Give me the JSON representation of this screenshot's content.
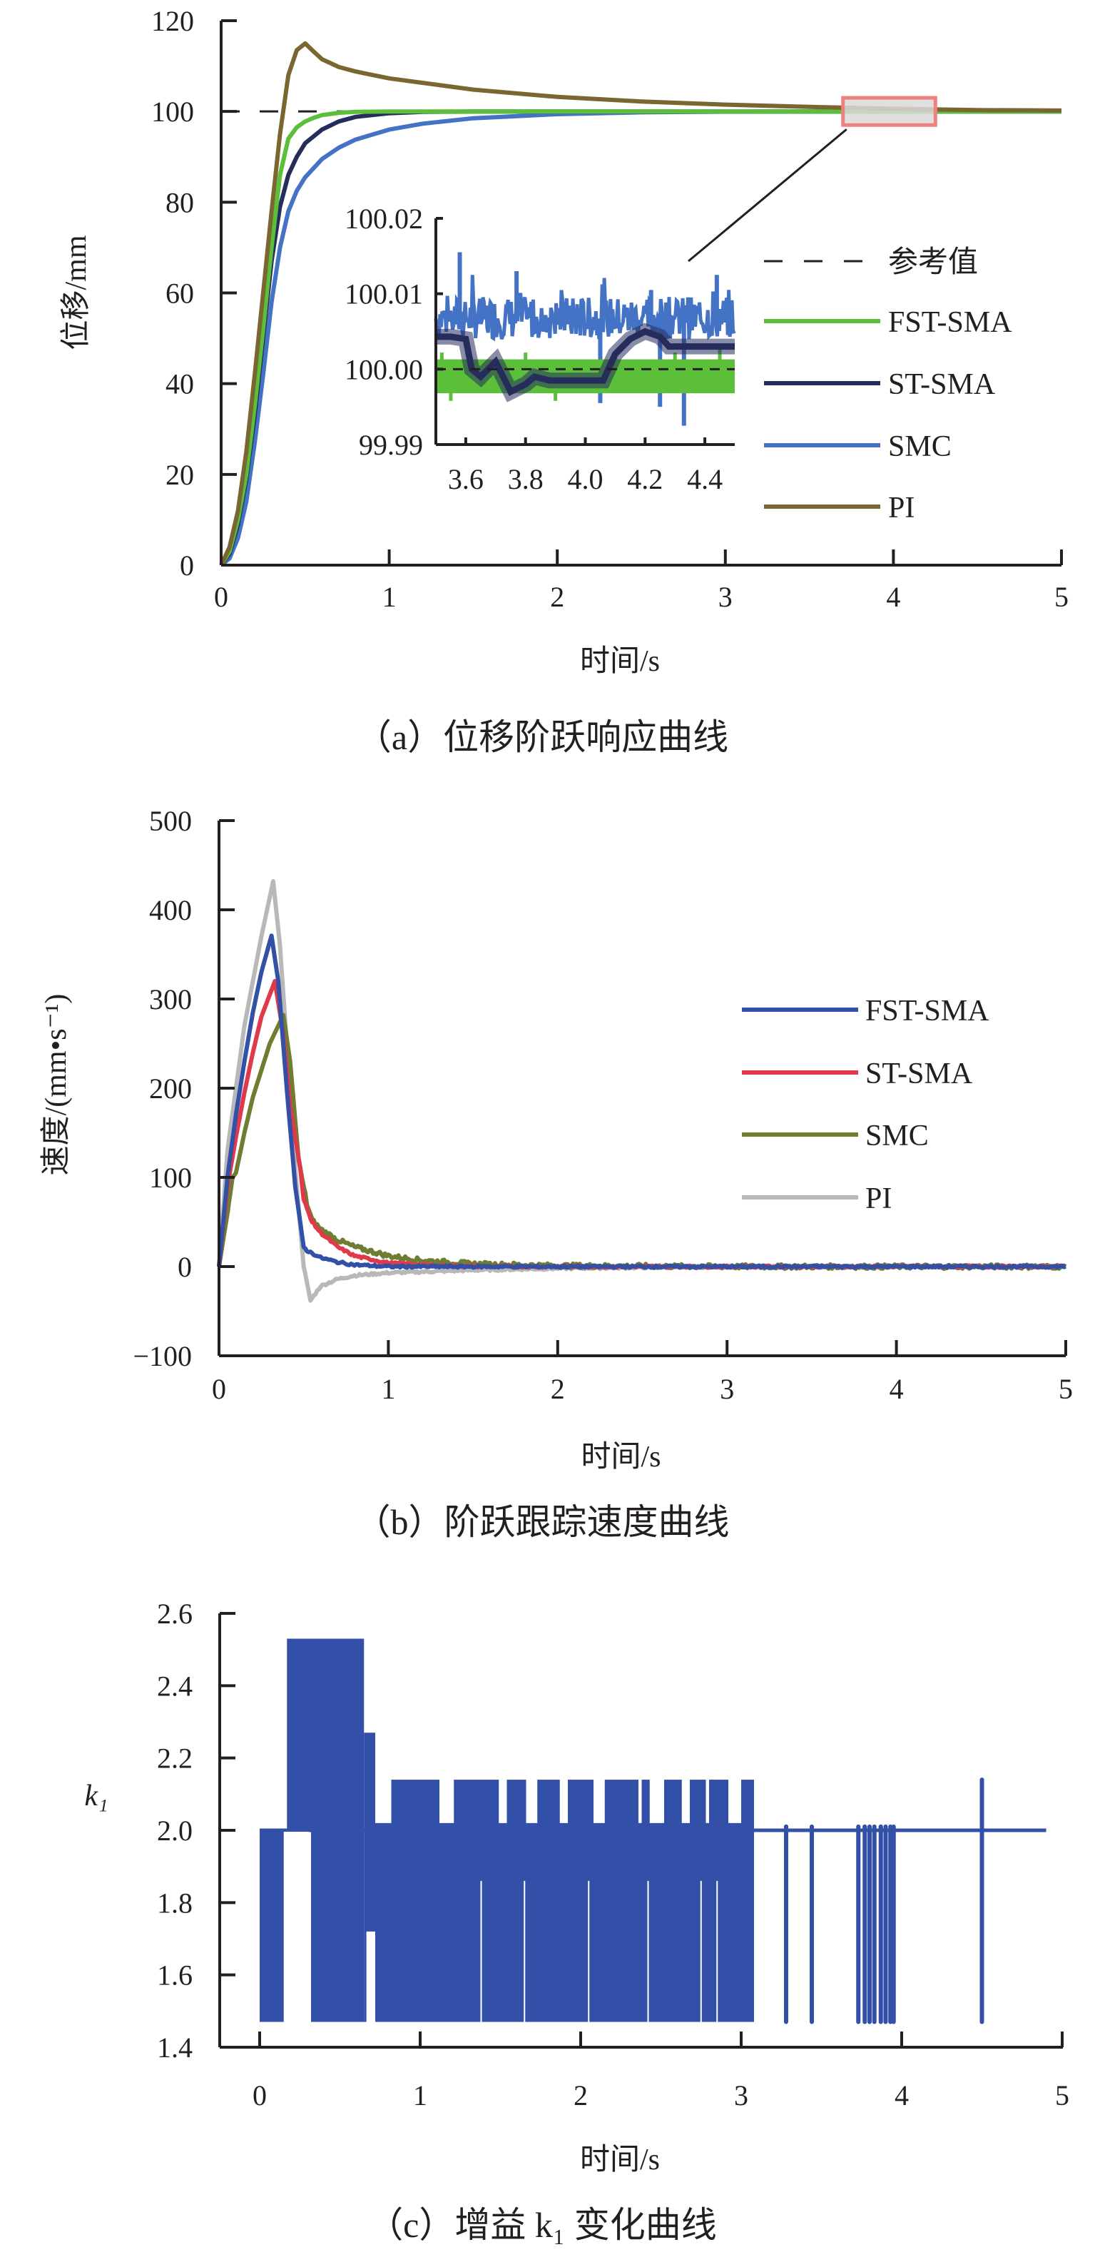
{
  "figure": {
    "description": "Three stacked line charts comparing controllers"
  },
  "chart_data": [
    {
      "id": "a",
      "type": "line",
      "title": "",
      "caption": "（a）位移阶跃响应曲线",
      "xlabel": "时间/s",
      "ylabel": "位移/mm",
      "xlim": [
        0,
        5
      ],
      "ylim": [
        0,
        120
      ],
      "xticks": [
        0,
        1,
        2,
        3,
        4,
        5
      ],
      "xtick_labels": [
        "0",
        "1",
        "2",
        "3",
        "4",
        "5"
      ],
      "yticks": [
        0,
        20,
        40,
        60,
        80,
        100,
        120
      ],
      "ytick_labels": [
        "0",
        "20",
        "40",
        "60",
        "80",
        "100",
        "120"
      ],
      "grid": false,
      "legend_position": "right",
      "reference": {
        "name": "参考值",
        "value": 100,
        "style": "dashed",
        "color": "#231f20"
      },
      "series": [
        {
          "name": "FST-SMA",
          "color": "#5bbf3a",
          "x": [
            0,
            0.05,
            0.1,
            0.15,
            0.2,
            0.25,
            0.3,
            0.35,
            0.4,
            0.45,
            0.5,
            0.55,
            0.6,
            0.7,
            0.8,
            1.0,
            1.5,
            2,
            3,
            4,
            5
          ],
          "y": [
            0,
            3,
            10,
            20,
            35,
            52,
            70,
            86,
            94,
            96.5,
            97.8,
            98.6,
            99.2,
            99.7,
            99.9,
            100,
            100,
            100,
            100,
            100,
            100
          ]
        },
        {
          "name": "ST-SMA",
          "color": "#262d5c",
          "x": [
            0,
            0.05,
            0.1,
            0.15,
            0.2,
            0.25,
            0.3,
            0.35,
            0.4,
            0.45,
            0.5,
            0.6,
            0.7,
            0.8,
            1.0,
            1.2,
            1.5,
            2,
            3,
            4,
            5
          ],
          "y": [
            0,
            2.5,
            9,
            19,
            33,
            50,
            67,
            79,
            86,
            90,
            93,
            96,
            97.8,
            98.8,
            99.6,
            99.9,
            100,
            100,
            100,
            100,
            100
          ]
        },
        {
          "name": "SMC",
          "color": "#4472c4",
          "x": [
            0,
            0.05,
            0.1,
            0.15,
            0.2,
            0.25,
            0.3,
            0.35,
            0.4,
            0.45,
            0.5,
            0.6,
            0.7,
            0.8,
            1.0,
            1.2,
            1.5,
            2.0,
            2.5,
            3.0,
            4.0,
            5.0
          ],
          "y": [
            0,
            1.5,
            6,
            14,
            27,
            42,
            58,
            70,
            78,
            82.5,
            85.5,
            89.5,
            92,
            93.8,
            96,
            97.3,
            98.5,
            99.4,
            99.8,
            99.95,
            100,
            100
          ]
        },
        {
          "name": "PI",
          "color": "#7a6630",
          "x": [
            0,
            0.05,
            0.1,
            0.15,
            0.2,
            0.25,
            0.3,
            0.35,
            0.4,
            0.45,
            0.5,
            0.55,
            0.6,
            0.7,
            0.8,
            1.0,
            1.5,
            2.0,
            2.5,
            3.0,
            3.5,
            4.0,
            4.5,
            5.0
          ],
          "y": [
            0,
            4,
            12,
            25,
            42,
            60,
            78,
            95,
            108,
            113.5,
            115,
            113.2,
            111.5,
            109.8,
            108.8,
            107.3,
            104.8,
            103.2,
            102.2,
            101.5,
            101,
            100.6,
            100.3,
            100.2
          ]
        }
      ],
      "zoom_box": {
        "x_range": [
          3.7,
          4.25
        ],
        "y_range": [
          97,
          103
        ],
        "fill": "#d9d9d9",
        "stroke": "#f08080"
      },
      "inset": {
        "xlim": [
          3.5,
          4.5
        ],
        "ylim": [
          99.99,
          100.02
        ],
        "xticks": [
          3.6,
          3.8,
          4.0,
          4.2,
          4.4
        ],
        "xtick_labels": [
          "3.6",
          "3.8",
          "4.0",
          "4.2",
          "4.4"
        ],
        "yticks": [
          99.99,
          100.0,
          100.01,
          100.02
        ],
        "ytick_labels": [
          "99.99",
          "100.00",
          "100.01",
          "100.02"
        ],
        "reference_value": 100.0,
        "series": [
          {
            "name": "FST-SMA",
            "band": [
              99.9968,
              100.0013
            ],
            "spikes": [
              [
                3.52,
                100.0022
              ],
              [
                3.55,
                99.9958
              ],
              [
                3.8,
                100.0022
              ],
              [
                3.9,
                99.9958
              ],
              [
                4.1,
                100.0022
              ],
              [
                4.3,
                100.0022
              ],
              [
                4.45,
                100.0028
              ]
            ]
          },
          {
            "name": "ST-SMA",
            "x": [
              3.5,
              3.55,
              3.6,
              3.62,
              3.65,
              3.7,
              3.75,
              3.8,
              3.83,
              3.88,
              4.0,
              4.06,
              4.1,
              4.15,
              4.2,
              4.25,
              4.28,
              4.5
            ],
            "y": [
              100.0043,
              100.0043,
              100.004,
              100.0,
              99.999,
              100.001,
              99.997,
              99.998,
              99.999,
              99.9985,
              99.9985,
              99.9985,
              100.002,
              100.004,
              100.005,
              100.0043,
              100.003,
              100.003
            ]
          },
          {
            "name": "SMC",
            "center": 100.0065,
            "amplitude": 0.0035,
            "peaks": [
              [
                3.58,
                100.0155
              ],
              [
                4.44,
                100.0125
              ],
              [
                3.77,
                100.013
              ],
              [
                4.22,
                100.0105
              ]
            ],
            "dips": [
              [
                4.33,
                99.9925
              ],
              [
                4.25,
                99.995
              ],
              [
                4.05,
                99.9955
              ]
            ]
          }
        ]
      }
    },
    {
      "id": "b",
      "type": "line",
      "title": "",
      "caption": "（b）阶跃跟踪速度曲线",
      "xlabel": "时间/s",
      "ylabel": "速度/(mm•s⁻¹)",
      "xlim": [
        0,
        5
      ],
      "ylim": [
        -100,
        500
      ],
      "xticks": [
        0,
        1,
        2,
        3,
        4,
        5
      ],
      "xtick_labels": [
        "0",
        "1",
        "2",
        "3",
        "4",
        "5"
      ],
      "yticks": [
        -100,
        0,
        100,
        200,
        300,
        400,
        500
      ],
      "ytick_labels": [
        "−100",
        "0",
        "100",
        "200",
        "300",
        "400",
        "500"
      ],
      "grid": false,
      "legend_position": "right",
      "series": [
        {
          "name": "FST-SMA",
          "color": "#3150a6",
          "x": [
            0,
            0.05,
            0.1,
            0.15,
            0.2,
            0.25,
            0.31,
            0.35,
            0.4,
            0.45,
            0.5,
            0.52,
            0.6,
            0.7,
            0.8,
            1.0,
            1.5,
            5
          ],
          "y": [
            0,
            100,
            170,
            230,
            285,
            330,
            371,
            320,
            200,
            90,
            22,
            18,
            10,
            5,
            2,
            0,
            0,
            0
          ]
        },
        {
          "name": "ST-SMA",
          "color": "#e03a4a",
          "x": [
            0,
            0.05,
            0.1,
            0.15,
            0.2,
            0.25,
            0.33,
            0.38,
            0.42,
            0.48,
            0.5,
            0.55,
            0.6,
            0.7,
            0.8,
            1.0,
            1.3,
            1.6,
            5
          ],
          "y": [
            0,
            90,
            145,
            195,
            240,
            280,
            320,
            260,
            180,
            110,
            75,
            50,
            38,
            22,
            12,
            4,
            1,
            0,
            0
          ]
        },
        {
          "name": "SMC",
          "color": "#6d7e32",
          "x": [
            0,
            0.05,
            0.08,
            0.1,
            0.15,
            0.2,
            0.25,
            0.3,
            0.35,
            0.38,
            0.42,
            0.47,
            0.52,
            0.55,
            0.6,
            0.7,
            0.8,
            1.0,
            1.2,
            1.5,
            2.0,
            3.0,
            5
          ],
          "y": [
            0,
            60,
            100,
            105,
            150,
            190,
            220,
            250,
            270,
            282,
            230,
            120,
            70,
            52,
            42,
            30,
            22,
            12,
            7,
            3,
            1,
            0,
            0
          ]
        },
        {
          "name": "PI",
          "color": "#b8b8b8",
          "x": [
            0,
            0.05,
            0.1,
            0.15,
            0.2,
            0.25,
            0.32,
            0.36,
            0.4,
            0.45,
            0.5,
            0.54,
            0.57,
            0.6,
            0.7,
            0.8,
            1.0,
            1.5,
            2.0,
            3.0,
            5
          ],
          "y": [
            0,
            130,
            200,
            270,
            320,
            370,
            432,
            360,
            250,
            110,
            0,
            -38,
            -30,
            -22,
            -14,
            -10,
            -7,
            -4,
            -2,
            0,
            0
          ]
        }
      ]
    },
    {
      "id": "c",
      "type": "line",
      "title": "",
      "caption": "（c）增益 k₁ 变化曲线",
      "xlabel": "时间/s",
      "ylabel": "k₁",
      "xlim": [
        -0.25,
        5
      ],
      "ylim": [
        1.4,
        2.6
      ],
      "xticks": [
        0,
        1,
        2,
        3,
        4,
        5
      ],
      "xtick_labels": [
        "0",
        "1",
        "2",
        "3",
        "4",
        "5"
      ],
      "yticks": [
        1.4,
        1.6,
        1.8,
        2.0,
        2.2,
        2.4,
        2.6
      ],
      "ytick_labels": [
        "1.4",
        "1.6",
        "1.8",
        "2.0",
        "2.2",
        "2.4",
        "2.6"
      ],
      "grid": false,
      "series": [
        {
          "name": "k1",
          "color": "#3350a8",
          "baseline": 2.0,
          "levels": {
            "high1": 2.53,
            "high2": 2.27,
            "high3": 2.14,
            "low": 1.47
          },
          "dense_blocks": [
            {
              "x": [
                0.0,
                0.17
              ],
              "top": 2.0,
              "bottom": 1.47
            },
            {
              "x": [
                0.17,
                0.32
              ],
              "top": 2.53,
              "bottom": 2.0
            },
            {
              "x": [
                0.32,
                0.65
              ],
              "top": 2.53,
              "bottom": 1.47
            },
            {
              "x": [
                0.65,
                0.72
              ],
              "top": 2.27,
              "bottom": 1.47
            },
            {
              "x": [
                0.72,
                3.08
              ],
              "top": 2.14,
              "bottom": 1.47
            }
          ],
          "spikes_down": [
            3.28,
            3.44,
            3.73,
            3.77,
            3.8,
            3.83,
            3.87,
            3.9,
            3.93,
            3.95,
            4.5
          ],
          "spikes_up": [
            [
              4.5,
              2.14
            ],
            [
              3.28,
              2.01
            ],
            [
              3.77,
              2.01
            ],
            [
              3.87,
              2.01
            ]
          ],
          "end_x": 4.9
        }
      ]
    }
  ]
}
